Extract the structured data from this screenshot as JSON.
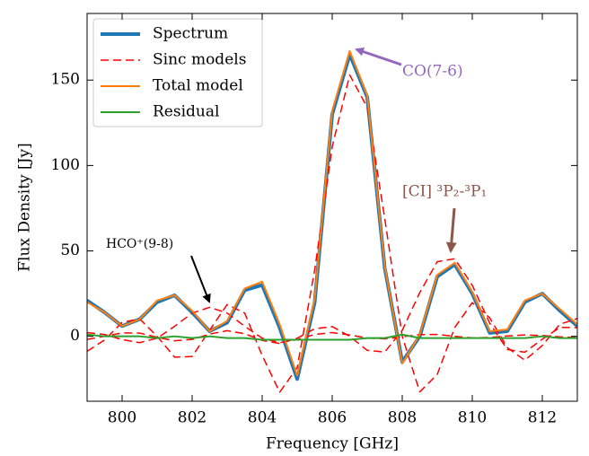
{
  "chart_data": {
    "type": "line",
    "xlabel": "Frequency [GHz]",
    "ylabel": "Flux Density [Jy]",
    "xlim": [
      799,
      813
    ],
    "ylim": [
      -38,
      189
    ],
    "xticks": [
      800,
      802,
      804,
      806,
      808,
      810,
      812
    ],
    "yticks": [
      0,
      50,
      100,
      150
    ],
    "legend": "upper left",
    "x": [
      799,
      799.5,
      800,
      800.5,
      801,
      801.5,
      802,
      802.5,
      803,
      803.5,
      804,
      804.5,
      805,
      805.5,
      806,
      806.5,
      807,
      807.5,
      808,
      808.5,
      809,
      809.5,
      810,
      810.5,
      811,
      811.5,
      812,
      812.5,
      813
    ],
    "series": [
      {
        "name": "Spectrum",
        "color": "#1f77b4",
        "width": 4,
        "values": [
          21,
          14,
          6,
          10,
          20,
          24,
          14,
          3,
          8,
          27,
          30,
          5,
          -25,
          20,
          130,
          165,
          140,
          40,
          -15,
          0,
          35,
          42,
          25,
          2,
          3,
          20,
          25,
          15,
          6
        ]
      },
      {
        "name": "Sinc models",
        "color": "#ff0000",
        "width": 1.5,
        "dashed": true,
        "values": [
          [
            -8.8,
            -2.1,
            8.2,
            10.2,
            0,
            -12.2,
            -11.8,
            3.6,
            18.6,
            13.6,
            -11.2,
            -32.7,
            -18.3,
            38.8,
            111,
            153,
            134,
            69,
            0,
            -32.5,
            -22.3,
            5.2,
            19.7,
            10.8,
            -6.6,
            -14,
            -5.4,
            7.1,
            10.4
          ],
          [
            2.2,
            1.1,
            -1.9,
            -3.7,
            -1.1,
            5.9,
            13.6,
            17,
            13.6,
            5.9,
            -1.1,
            -3.7,
            -1.9,
            1.1,
            2.2,
            0.8,
            -1.0,
            -1.5,
            -0.3,
            1.0,
            1.1,
            0,
            -0.9,
            -0.7,
            0.2,
            0.8,
            0.5,
            -0.3,
            -0.7
          ],
          [
            -1.8,
            0,
            2.0,
            1.9,
            -0.6,
            -2.6,
            -1.8,
            1.3,
            3.3,
            1.5,
            -2.4,
            -4.2,
            -1.1,
            4.4,
            5.7,
            0,
            -8.2,
            -9.2,
            3.5,
            25.6,
            43.7,
            45.4,
            29.9,
            7.6,
            -7.7,
            -9.3,
            -1.7,
            5.2,
            5.1
          ]
        ]
      },
      {
        "name": "Total model",
        "color": "#ff7f0e",
        "width": 2,
        "values": [
          20,
          14,
          6,
          10,
          21,
          24,
          15,
          3,
          9,
          28,
          32,
          7,
          -23,
          22,
          132,
          167,
          141,
          41,
          -16,
          1,
          36,
          43,
          26,
          3,
          4,
          21,
          25,
          16,
          7
        ]
      },
      {
        "name": "Residual",
        "color": "#2ca02c",
        "width": 2,
        "values": [
          1,
          0,
          0,
          0,
          -1,
          0,
          -1,
          0,
          -1,
          -1,
          -2,
          -2,
          -2,
          -2,
          -2,
          -2,
          -1,
          -1,
          1,
          -1,
          -1,
          -1,
          -1,
          -1,
          -1,
          -1,
          0,
          -1,
          -1
        ]
      }
    ],
    "annotations": [
      {
        "text": "CO(7-6)",
        "color": "#9467bd"
      },
      {
        "text": "[CI] ³P₂-³P₁",
        "color": "#8c564b"
      },
      {
        "text": "HCO⁺(9-8)",
        "color": "#000000"
      }
    ]
  }
}
